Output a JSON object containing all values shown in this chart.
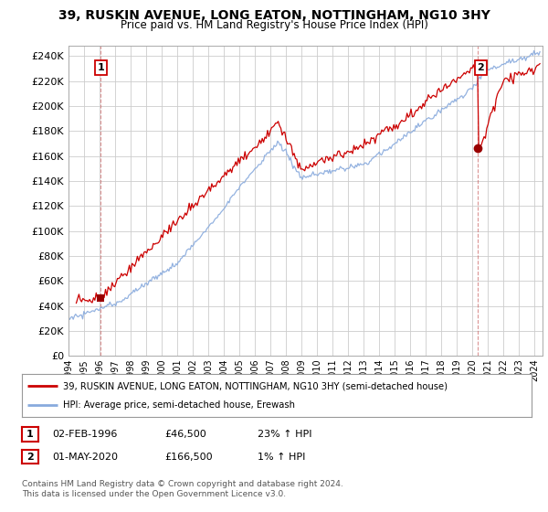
{
  "title_line1": "39, RUSKIN AVENUE, LONG EATON, NOTTINGHAM, NG10 3HY",
  "title_line2": "Price paid vs. HM Land Registry's House Price Index (HPI)",
  "ylabel_ticks": [
    "£0",
    "£20K",
    "£40K",
    "£60K",
    "£80K",
    "£100K",
    "£120K",
    "£140K",
    "£160K",
    "£180K",
    "£200K",
    "£220K",
    "£240K"
  ],
  "ytick_values": [
    0,
    20000,
    40000,
    60000,
    80000,
    100000,
    120000,
    140000,
    160000,
    180000,
    200000,
    220000,
    240000
  ],
  "ylim": [
    0,
    248000
  ],
  "xlim_start": 1994.0,
  "xlim_end": 2024.5,
  "point1_year": 1996.08,
  "point1_value": 46500,
  "point1_label": "1",
  "point2_year": 2020.33,
  "point2_value": 166500,
  "point2_label": "2",
  "legend_line1": "39, RUSKIN AVENUE, LONG EATON, NOTTINGHAM, NG10 3HY (semi-detached house)",
  "legend_line2": "HPI: Average price, semi-detached house, Erewash",
  "note1_date": "02-FEB-1996",
  "note1_price": "£46,500",
  "note1_hpi": "23% ↑ HPI",
  "note2_date": "01-MAY-2020",
  "note2_price": "£166,500",
  "note2_hpi": "1% ↑ HPI",
  "copyright": "Contains HM Land Registry data © Crown copyright and database right 2024.\nThis data is licensed under the Open Government Licence v3.0.",
  "property_line_color": "#cc0000",
  "hpi_line_color": "#88aadd",
  "background_color": "#ffffff",
  "grid_color": "#cccccc",
  "point_marker_color": "#990000"
}
